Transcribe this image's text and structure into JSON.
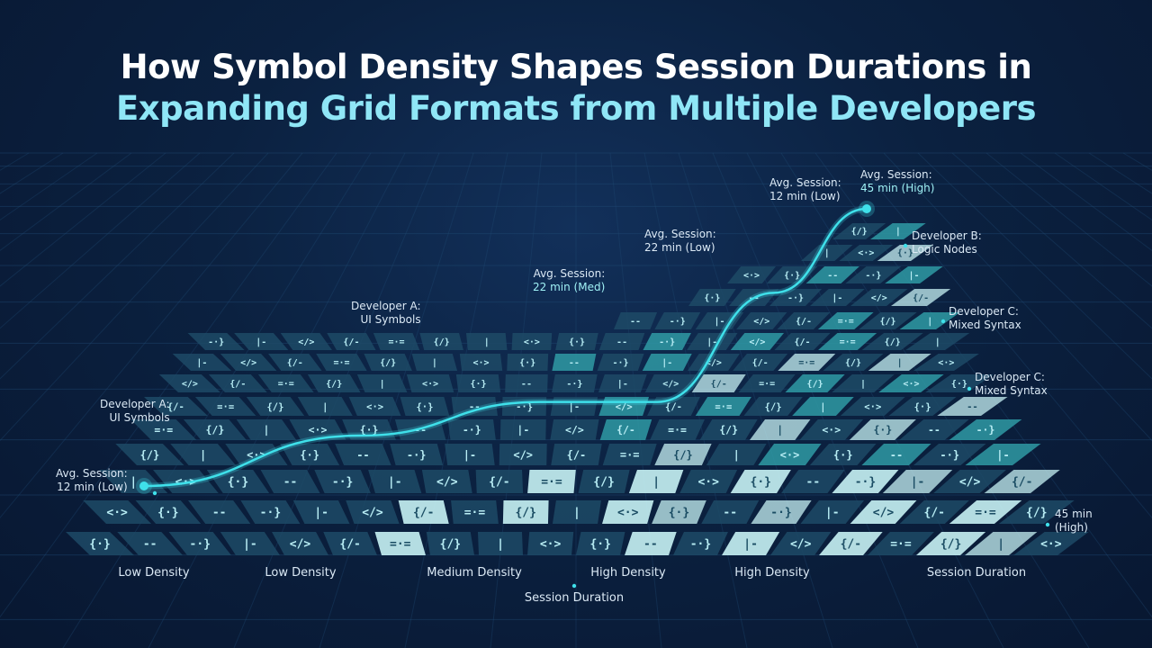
{
  "title": {
    "line1": "How Symbol Density Shapes Session Durations in",
    "line2": "Expanding Grid Formats from Multiple Developers"
  },
  "chart_data": {
    "type": "line",
    "title": "How Symbol Density Shapes Session Durations in Expanding Grid Formats from Multiple Developers",
    "xlabel": "Session Duration",
    "x_ticks": [
      "Low Density",
      "Low Density",
      "Medium Density",
      "High Density",
      "High Density",
      "Session Duration"
    ],
    "grid": true,
    "series": [
      {
        "x": [
          0,
          1,
          2,
          3,
          4,
          5
        ],
        "values": [
          12,
          18,
          22,
          22,
          35,
          45
        ],
        "unit": "min"
      }
    ],
    "symbols": [
      "{·}",
      "{/}",
      "</>",
      "--",
      "|",
      "{/-",
      "-·}",
      "<·>",
      "=·=",
      "|-"
    ],
    "annotations": [
      {
        "id": "start",
        "lines": [
          "Avg. Session:",
          "12 min (Low)"
        ]
      },
      {
        "id": "dev-a-left",
        "lines": [
          "Developer A:",
          "UI Symbols"
        ]
      },
      {
        "id": "dev-a-top",
        "lines": [
          "Developer A:",
          "UI Symbols"
        ]
      },
      {
        "id": "med",
        "lines": [
          "Avg. Session:",
          "22 min (Med)"
        ]
      },
      {
        "id": "low22",
        "lines": [
          "Avg. Session:",
          "22 min (Low)"
        ]
      },
      {
        "id": "low12",
        "lines": [
          "Avg. Session:",
          "12 min (Low)"
        ]
      },
      {
        "id": "high45",
        "lines": [
          "Avg. Session:",
          "45 min (High)"
        ]
      },
      {
        "id": "dev-b",
        "lines": [
          "Developer B:",
          "Logic Nodes"
        ]
      },
      {
        "id": "dev-c1",
        "lines": [
          "Developer C:",
          "Mixed Syntax"
        ]
      },
      {
        "id": "dev-c2",
        "lines": [
          "Developer C:",
          "Mixed Syntax"
        ]
      },
      {
        "id": "end",
        "lines": [
          "45 min",
          "(High)"
        ]
      }
    ],
    "colors": {
      "line": "#3fe0ea",
      "tile_dark": "#1d4a66",
      "tile_mid": "#2f9aa5",
      "tile_light": "#c7f2f4",
      "symbol": "#b9eef5",
      "grid": "#1f4a73"
    }
  }
}
